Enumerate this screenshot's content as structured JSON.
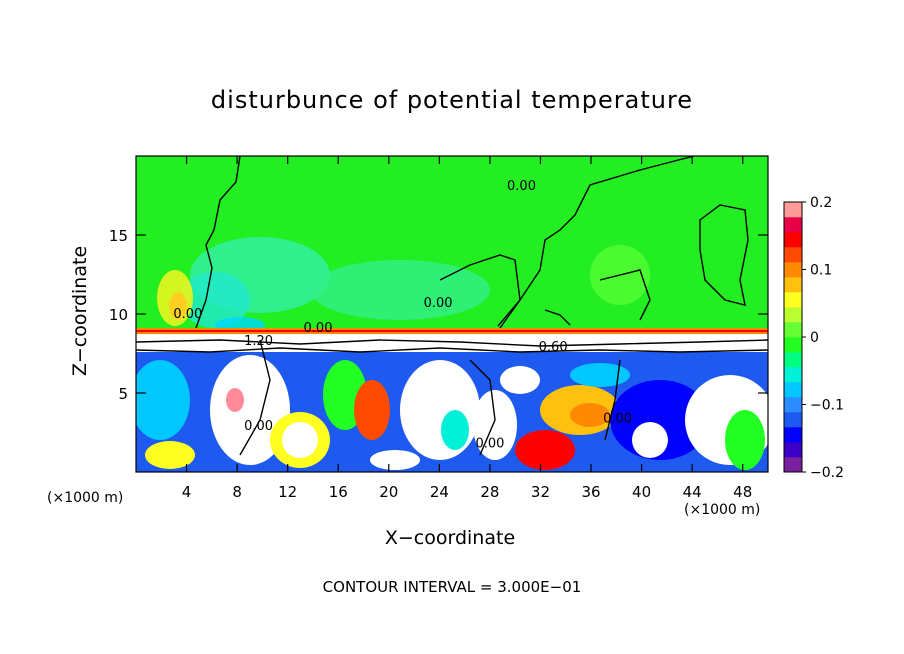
{
  "chart_data": {
    "type": "heatmap",
    "title": "disturbunce of potential temperature",
    "xlabel": "X−coordinate",
    "ylabel": "Z−coordinate",
    "x_unit_left": "(×1000 m)",
    "x_unit_right": "(×1000 m)",
    "xlim": [
      0,
      50
    ],
    "ylim": [
      0,
      20
    ],
    "x_ticks": [
      "4",
      "8",
      "12",
      "16",
      "20",
      "24",
      "28",
      "32",
      "36",
      "40",
      "44",
      "48"
    ],
    "x_tick_values": [
      4,
      8,
      12,
      16,
      20,
      24,
      28,
      32,
      36,
      40,
      44,
      48
    ],
    "y_ticks": [
      "5",
      "10",
      "15"
    ],
    "y_tick_values": [
      5,
      10,
      15
    ],
    "colorbar": {
      "min": -0.2,
      "max": 0.2,
      "ticks": [
        "0.2",
        "0.1",
        "0",
        "−0.1",
        "−0.2"
      ],
      "tick_values": [
        0.2,
        0.1,
        0,
        -0.1,
        -0.2
      ],
      "colors": [
        "#7a1fa0",
        "#3b00c8",
        "#0000ff",
        "#1e5af0",
        "#2a8cff",
        "#00c8ff",
        "#00f0d8",
        "#00ff80",
        "#22ff22",
        "#66ff33",
        "#bbff33",
        "#ffff22",
        "#ffc010",
        "#ff8a00",
        "#ff4a00",
        "#ff0000",
        "#e80048",
        "#ff9a9a"
      ]
    },
    "contour_labels": [
      {
        "text": "0.00",
        "x": 30.5,
        "y": 18.1
      },
      {
        "text": "0.00",
        "x": 4.1,
        "y": 10.0
      },
      {
        "text": "0.00",
        "x": 14.4,
        "y": 9.1
      },
      {
        "text": "0.00",
        "x": 23.9,
        "y": 10.7
      },
      {
        "text": "0.00",
        "x": 9.7,
        "y": 2.9
      },
      {
        "text": "0.00",
        "x": 28.0,
        "y": 1.8
      },
      {
        "text": "0.00",
        "x": 38.1,
        "y": 3.4
      },
      {
        "text": "1.20",
        "x": 9.7,
        "y": 8.3
      },
      {
        "text": "0.60",
        "x": 33.0,
        "y": 7.9
      }
    ],
    "contour_interval_text": "CONTOUR INTERVAL = 3.000E−01"
  }
}
